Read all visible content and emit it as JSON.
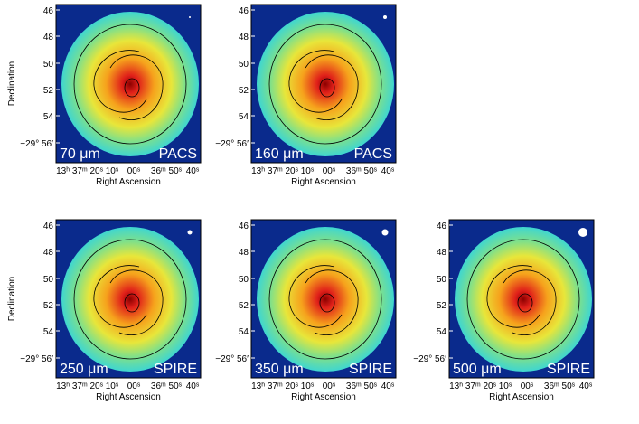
{
  "panels": [
    {
      "band": "70 μm",
      "instrument": "PACS"
    },
    {
      "band": "160 μm",
      "instrument": "PACS"
    },
    {
      "band": "250 μm",
      "instrument": "SPIRE"
    },
    {
      "band": "350 μm",
      "instrument": "SPIRE"
    },
    {
      "band": "500 μm",
      "instrument": "SPIRE"
    }
  ],
  "y_axis": {
    "title": "Declination",
    "ticks": [
      "46",
      "48",
      "50",
      "52",
      "54",
      "−29° 56′"
    ]
  },
  "x_axis": {
    "title": "Right Ascension",
    "ticks": [
      "13ʰ 37ᵐ 20ˢ",
      "10ˢ",
      "00ˢ",
      "36ᵐ 50ˢ",
      "40ˢ"
    ]
  }
}
